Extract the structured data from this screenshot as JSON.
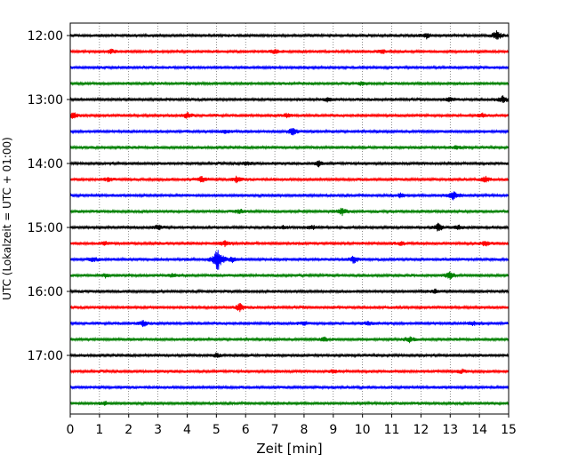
{
  "chart_data": {
    "type": "line",
    "title": "",
    "xlabel": "Zeit  [min]",
    "ylabel": "UTC (Lokalzeit = UTC + 01:00)",
    "xlim": [
      0,
      15
    ],
    "xticks": [
      0,
      1,
      2,
      3,
      4,
      5,
      6,
      7,
      8,
      9,
      10,
      11,
      12,
      13,
      14,
      15
    ],
    "xtick_labels": [
      "0",
      "1",
      "2",
      "3",
      "4",
      "5",
      "6",
      "7",
      "8",
      "9",
      "10",
      "11",
      "12",
      "13",
      "14",
      "15"
    ],
    "ytick_labels": [
      "12:00",
      "13:00",
      "14:00",
      "15:00",
      "16:00",
      "17:00"
    ],
    "grid": "vertical dotted at each minute",
    "colors": [
      "#000000",
      "#ff0000",
      "#0000ff",
      "#008000"
    ],
    "traces": [
      {
        "start": "12:00",
        "color": "#000000",
        "events": [
          [
            12.2,
            3
          ],
          [
            14.6,
            5
          ]
        ]
      },
      {
        "start": "12:15",
        "color": "#ff0000",
        "events": [
          [
            1.4,
            2
          ],
          [
            7.0,
            2
          ],
          [
            10.7,
            2
          ]
        ]
      },
      {
        "start": "12:30",
        "color": "#0000ff",
        "events": []
      },
      {
        "start": "12:45",
        "color": "#008000",
        "events": [
          [
            10.0,
            2
          ]
        ]
      },
      {
        "start": "13:00",
        "color": "#000000",
        "events": [
          [
            8.8,
            2
          ],
          [
            13.0,
            2
          ],
          [
            14.8,
            4
          ]
        ]
      },
      {
        "start": "13:15",
        "color": "#ff0000",
        "events": [
          [
            0.1,
            3
          ],
          [
            4.0,
            3
          ],
          [
            7.4,
            2
          ],
          [
            14.1,
            2
          ]
        ]
      },
      {
        "start": "13:30",
        "color": "#0000ff",
        "events": [
          [
            7.6,
            4
          ],
          [
            5.3,
            2
          ]
        ]
      },
      {
        "start": "13:45",
        "color": "#008000",
        "events": [
          [
            13.2,
            2
          ]
        ]
      },
      {
        "start": "14:00",
        "color": "#000000",
        "events": [
          [
            6.0,
            2
          ],
          [
            8.5,
            3
          ]
        ]
      },
      {
        "start": "14:15",
        "color": "#ff0000",
        "events": [
          [
            1.3,
            2
          ],
          [
            4.5,
            3
          ],
          [
            5.7,
            3
          ],
          [
            14.2,
            3
          ]
        ]
      },
      {
        "start": "14:30",
        "color": "#0000ff",
        "events": [
          [
            11.3,
            2
          ],
          [
            13.1,
            5
          ]
        ]
      },
      {
        "start": "14:45",
        "color": "#008000",
        "events": [
          [
            9.3,
            4
          ],
          [
            5.8,
            2
          ]
        ]
      },
      {
        "start": "15:00",
        "color": "#000000",
        "events": [
          [
            3.0,
            3
          ],
          [
            7.3,
            2
          ],
          [
            8.3,
            2
          ],
          [
            12.6,
            5
          ],
          [
            13.3,
            2
          ]
        ]
      },
      {
        "start": "15:15",
        "color": "#ff0000",
        "events": [
          [
            1.2,
            2
          ],
          [
            5.3,
            3
          ],
          [
            11.3,
            2
          ],
          [
            14.2,
            3
          ]
        ]
      },
      {
        "start": "15:30",
        "color": "#0000ff",
        "events": [
          [
            0.8,
            3
          ],
          [
            5.05,
            14
          ],
          [
            5.55,
            3
          ],
          [
            9.7,
            4
          ]
        ]
      },
      {
        "start": "15:45",
        "color": "#008000",
        "events": [
          [
            1.2,
            2
          ],
          [
            3.5,
            2
          ],
          [
            13.0,
            4
          ]
        ]
      },
      {
        "start": "16:00",
        "color": "#000000",
        "events": [
          [
            12.5,
            2
          ]
        ]
      },
      {
        "start": "16:15",
        "color": "#ff0000",
        "events": [
          [
            5.8,
            4
          ]
        ]
      },
      {
        "start": "16:30",
        "color": "#0000ff",
        "events": [
          [
            2.5,
            3
          ],
          [
            8.0,
            2
          ],
          [
            10.2,
            2
          ],
          [
            13.8,
            2
          ]
        ]
      },
      {
        "start": "16:45",
        "color": "#008000",
        "events": [
          [
            8.7,
            2
          ],
          [
            11.6,
            3
          ]
        ]
      },
      {
        "start": "17:00",
        "color": "#000000",
        "events": [
          [
            5.0,
            2
          ]
        ]
      },
      {
        "start": "17:15",
        "color": "#ff0000",
        "events": [
          [
            9.0,
            2
          ],
          [
            13.4,
            2
          ]
        ]
      },
      {
        "start": "17:30",
        "color": "#0000ff",
        "events": []
      },
      {
        "start": "17:45",
        "color": "#008000",
        "events": [
          [
            1.2,
            2
          ]
        ]
      }
    ]
  }
}
